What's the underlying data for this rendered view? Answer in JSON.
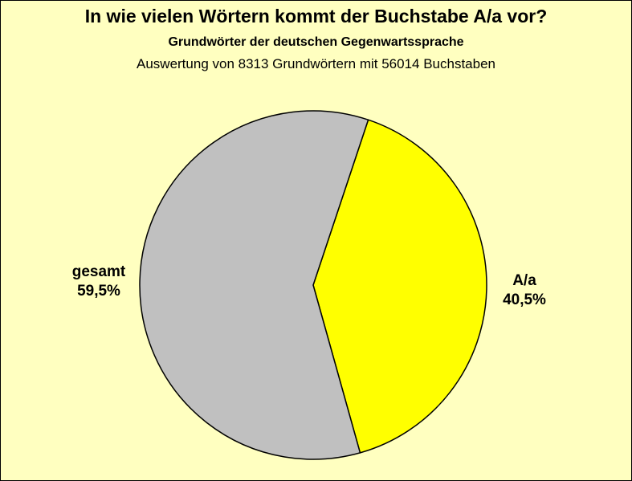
{
  "chart_data": {
    "type": "pie",
    "title": "In wie vielen Wörtern kommt der Buchstabe A/a vor?",
    "subtitle": "Grundwörter der deutschen Gegenwartssprache",
    "subtitle2": "Auswertung von 8313 Grundwörtern mit 56014 Buchstaben",
    "slices": [
      {
        "label": "A/a",
        "value": 40.5,
        "value_label": "40,5%",
        "color": "#ffff00"
      },
      {
        "label": "gesamt",
        "value": 59.5,
        "value_label": "59,5%",
        "color": "#c0c0c0"
      }
    ],
    "background": "#ffffc0"
  }
}
